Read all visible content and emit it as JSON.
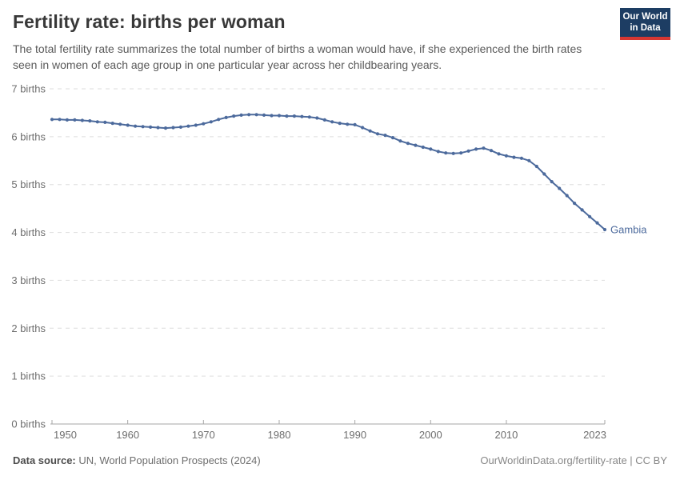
{
  "header": {
    "title": "Fertility rate: births per woman",
    "subtitle": "The total fertility rate summarizes the total number of births a woman would have, if she experienced the birth rates seen in women of each age group in one particular year across her childbearing years.",
    "logo": {
      "line1": "Our World",
      "line2": "in Data",
      "bg_color": "#1d3d63",
      "accent_color": "#d73732"
    }
  },
  "chart_data": {
    "type": "line",
    "title": "Fertility rate: births per woman",
    "xlabel": "",
    "ylabel": "births",
    "xlim": [
      1950,
      2023
    ],
    "ylim": [
      0,
      7
    ],
    "grid": "horizontal-dashed",
    "grid_color": "#dedede",
    "axis_color": "#a6a6a6",
    "tick_label_color": "#6e6e6e",
    "legend_position": "end-of-line label",
    "y_ticks": [
      {
        "value": 7,
        "label": "7 births"
      },
      {
        "value": 6,
        "label": "6 births"
      },
      {
        "value": 5,
        "label": "5 births"
      },
      {
        "value": 4,
        "label": "4 births"
      },
      {
        "value": 3,
        "label": "3 births"
      },
      {
        "value": 2,
        "label": "2 births"
      },
      {
        "value": 1,
        "label": "1 births"
      },
      {
        "value": 0,
        "label": "0 births"
      }
    ],
    "x_ticks": [
      {
        "value": 1950,
        "label": "1950"
      },
      {
        "value": 1960,
        "label": "1960"
      },
      {
        "value": 1970,
        "label": "1970"
      },
      {
        "value": 1980,
        "label": "1980"
      },
      {
        "value": 1990,
        "label": "1990"
      },
      {
        "value": 2000,
        "label": "2000"
      },
      {
        "value": 2010,
        "label": "2010"
      },
      {
        "value": 2023,
        "label": "2023"
      }
    ],
    "x": [
      1950,
      1951,
      1952,
      1953,
      1954,
      1955,
      1956,
      1957,
      1958,
      1959,
      1960,
      1961,
      1962,
      1963,
      1964,
      1965,
      1966,
      1967,
      1968,
      1969,
      1970,
      1971,
      1972,
      1973,
      1974,
      1975,
      1976,
      1977,
      1978,
      1979,
      1980,
      1981,
      1982,
      1983,
      1984,
      1985,
      1986,
      1987,
      1988,
      1989,
      1990,
      1991,
      1992,
      1993,
      1994,
      1995,
      1996,
      1997,
      1998,
      1999,
      2000,
      2001,
      2002,
      2003,
      2004,
      2005,
      2006,
      2007,
      2008,
      2009,
      2010,
      2011,
      2012,
      2013,
      2014,
      2015,
      2016,
      2017,
      2018,
      2019,
      2020,
      2021,
      2022,
      2023
    ],
    "series": [
      {
        "name": "Gambia",
        "color": "#4c6a9c",
        "values": [
          6.36,
          6.36,
          6.35,
          6.35,
          6.34,
          6.33,
          6.31,
          6.3,
          6.28,
          6.26,
          6.24,
          6.22,
          6.21,
          6.2,
          6.19,
          6.18,
          6.19,
          6.2,
          6.22,
          6.24,
          6.27,
          6.31,
          6.36,
          6.4,
          6.43,
          6.45,
          6.46,
          6.46,
          6.45,
          6.44,
          6.44,
          6.43,
          6.43,
          6.42,
          6.41,
          6.39,
          6.35,
          6.31,
          6.28,
          6.26,
          6.25,
          6.19,
          6.12,
          6.06,
          6.03,
          5.98,
          5.91,
          5.86,
          5.82,
          5.78,
          5.74,
          5.69,
          5.66,
          5.65,
          5.66,
          5.7,
          5.74,
          5.76,
          5.71,
          5.64,
          5.6,
          5.57,
          5.55,
          5.5,
          5.38,
          5.22,
          5.06,
          4.92,
          4.77,
          4.61,
          4.47,
          4.33,
          4.2,
          4.06
        ]
      }
    ]
  },
  "footer": {
    "source_label": "Data source:",
    "source_value": " UN, World Population Prospects (2024)",
    "credit": "OurWorldinData.org/fertility-rate | CC BY"
  }
}
